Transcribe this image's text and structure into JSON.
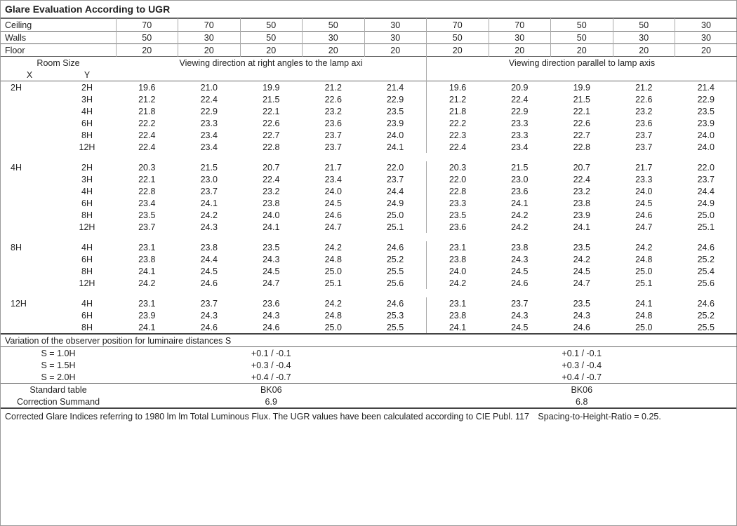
{
  "title": "Glare Evaluation According to UGR",
  "surfaces": {
    "ceiling_label": "Ceiling",
    "walls_label": "Walls",
    "floor_label": "Floor",
    "ceiling": [
      "70",
      "70",
      "50",
      "50",
      "30",
      "70",
      "70",
      "50",
      "50",
      "30"
    ],
    "walls": [
      "50",
      "30",
      "50",
      "30",
      "30",
      "50",
      "30",
      "50",
      "30",
      "30"
    ],
    "floor": [
      "20",
      "20",
      "20",
      "20",
      "20",
      "20",
      "20",
      "20",
      "20",
      "20"
    ]
  },
  "room_size_label": "Room Size",
  "x_label": "X",
  "y_label": "Y",
  "group_left": "Viewing direction at right angles to the lamp axi",
  "group_right": "Viewing direction parallel to lamp axis",
  "blocks": [
    {
      "x": "2H",
      "rows": [
        {
          "y": "2H",
          "l": [
            "19.6",
            "21.0",
            "19.9",
            "21.2",
            "21.4"
          ],
          "r": [
            "19.6",
            "20.9",
            "19.9",
            "21.2",
            "21.4"
          ]
        },
        {
          "y": "3H",
          "l": [
            "21.2",
            "22.4",
            "21.5",
            "22.6",
            "22.9"
          ],
          "r": [
            "21.2",
            "22.4",
            "21.5",
            "22.6",
            "22.9"
          ]
        },
        {
          "y": "4H",
          "l": [
            "21.8",
            "22.9",
            "22.1",
            "23.2",
            "23.5"
          ],
          "r": [
            "21.8",
            "22.9",
            "22.1",
            "23.2",
            "23.5"
          ]
        },
        {
          "y": "6H",
          "l": [
            "22.2",
            "23.3",
            "22.6",
            "23.6",
            "23.9"
          ],
          "r": [
            "22.2",
            "23.3",
            "22.6",
            "23.6",
            "23.9"
          ]
        },
        {
          "y": "8H",
          "l": [
            "22.4",
            "23.4",
            "22.7",
            "23.7",
            "24.0"
          ],
          "r": [
            "22.3",
            "23.3",
            "22.7",
            "23.7",
            "24.0"
          ]
        },
        {
          "y": "12H",
          "l": [
            "22.4",
            "23.4",
            "22.8",
            "23.7",
            "24.1"
          ],
          "r": [
            "22.4",
            "23.4",
            "22.8",
            "23.7",
            "24.0"
          ]
        }
      ]
    },
    {
      "x": "4H",
      "rows": [
        {
          "y": "2H",
          "l": [
            "20.3",
            "21.5",
            "20.7",
            "21.7",
            "22.0"
          ],
          "r": [
            "20.3",
            "21.5",
            "20.7",
            "21.7",
            "22.0"
          ]
        },
        {
          "y": "3H",
          "l": [
            "22.1",
            "23.0",
            "22.4",
            "23.4",
            "23.7"
          ],
          "r": [
            "22.0",
            "23.0",
            "22.4",
            "23.3",
            "23.7"
          ]
        },
        {
          "y": "4H",
          "l": [
            "22.8",
            "23.7",
            "23.2",
            "24.0",
            "24.4"
          ],
          "r": [
            "22.8",
            "23.6",
            "23.2",
            "24.0",
            "24.4"
          ]
        },
        {
          "y": "6H",
          "l": [
            "23.4",
            "24.1",
            "23.8",
            "24.5",
            "24.9"
          ],
          "r": [
            "23.3",
            "24.1",
            "23.8",
            "24.5",
            "24.9"
          ]
        },
        {
          "y": "8H",
          "l": [
            "23.5",
            "24.2",
            "24.0",
            "24.6",
            "25.0"
          ],
          "r": [
            "23.5",
            "24.2",
            "23.9",
            "24.6",
            "25.0"
          ]
        },
        {
          "y": "12H",
          "l": [
            "23.7",
            "24.3",
            "24.1",
            "24.7",
            "25.1"
          ],
          "r": [
            "23.6",
            "24.2",
            "24.1",
            "24.7",
            "25.1"
          ]
        }
      ]
    },
    {
      "x": "8H",
      "rows": [
        {
          "y": "4H",
          "l": [
            "23.1",
            "23.8",
            "23.5",
            "24.2",
            "24.6"
          ],
          "r": [
            "23.1",
            "23.8",
            "23.5",
            "24.2",
            "24.6"
          ]
        },
        {
          "y": "6H",
          "l": [
            "23.8",
            "24.4",
            "24.3",
            "24.8",
            "25.2"
          ],
          "r": [
            "23.8",
            "24.3",
            "24.2",
            "24.8",
            "25.2"
          ]
        },
        {
          "y": "8H",
          "l": [
            "24.1",
            "24.5",
            "24.5",
            "25.0",
            "25.5"
          ],
          "r": [
            "24.0",
            "24.5",
            "24.5",
            "25.0",
            "25.4"
          ]
        },
        {
          "y": "12H",
          "l": [
            "24.2",
            "24.6",
            "24.7",
            "25.1",
            "25.6"
          ],
          "r": [
            "24.2",
            "24.6",
            "24.7",
            "25.1",
            "25.6"
          ]
        }
      ]
    },
    {
      "x": "12H",
      "rows": [
        {
          "y": "4H",
          "l": [
            "23.1",
            "23.7",
            "23.6",
            "24.2",
            "24.6"
          ],
          "r": [
            "23.1",
            "23.7",
            "23.5",
            "24.1",
            "24.6"
          ]
        },
        {
          "y": "6H",
          "l": [
            "23.9",
            "24.3",
            "24.3",
            "24.8",
            "25.3"
          ],
          "r": [
            "23.8",
            "24.3",
            "24.3",
            "24.8",
            "25.2"
          ]
        },
        {
          "y": "8H",
          "l": [
            "24.1",
            "24.6",
            "24.6",
            "25.0",
            "25.5"
          ],
          "r": [
            "24.1",
            "24.5",
            "24.6",
            "25.0",
            "25.5"
          ]
        }
      ]
    }
  ],
  "variation_title": "Variation of the observer position for luminaire distances S",
  "variation_rows": [
    {
      "s": "S = 1.0H",
      "left": "+0.1 / -0.1",
      "right": "+0.1 / -0.1"
    },
    {
      "s": "S = 1.5H",
      "left": "+0.3 / -0.4",
      "right": "+0.3 / -0.4"
    },
    {
      "s": "S = 2.0H",
      "left": "+0.4 / -0.7",
      "right": "+0.4 / -0.7"
    }
  ],
  "std_table_label": "Standard table",
  "correction_label": "Correction Summand",
  "std_left": "BK06",
  "std_right": "BK06",
  "corr_left": "6.9",
  "corr_right": "6.8",
  "footnote": "Corrected Glare Indices referring to 1980 lm lm Total Luminous Flux. The UGR values have been calculated according to CIE Publ. 117 Spacing-to-Height-Ratio = 0.25."
}
